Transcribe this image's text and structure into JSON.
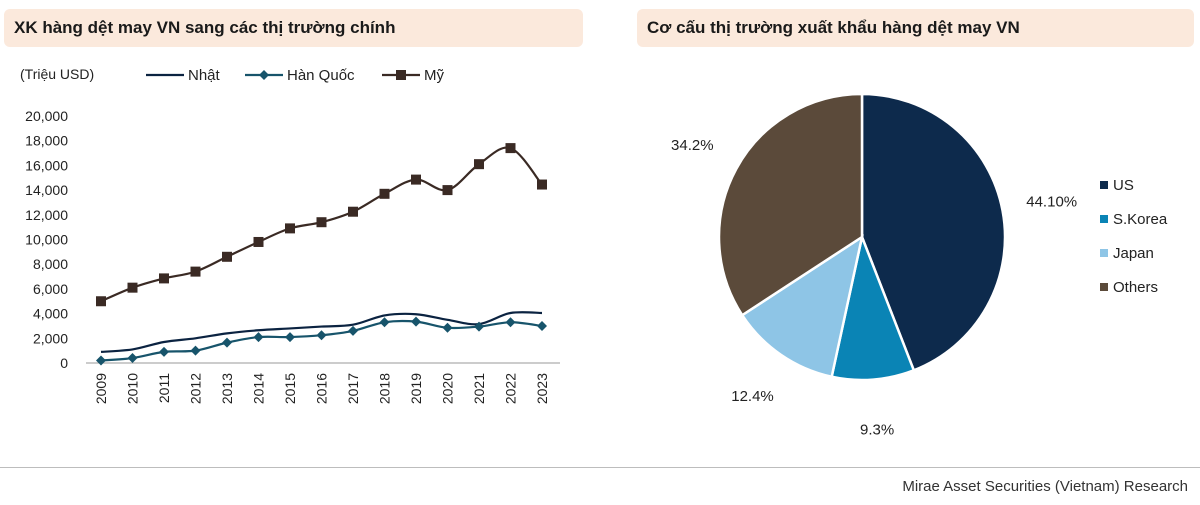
{
  "left_title": "XK hàng dệt may VN sang các thị trường chính",
  "right_title": "Cơ cấu thị trường xuất khẩu hàng dệt may VN",
  "source": "Mirae Asset Securities (Vietnam) Research",
  "chart_data": [
    {
      "type": "line",
      "unit_label": "(Triệu USD)",
      "x": [
        "2009",
        "2010",
        "2011",
        "2012",
        "2013",
        "2014",
        "2015",
        "2016",
        "2017",
        "2018",
        "2019",
        "2020",
        "2021",
        "2022",
        "2023"
      ],
      "ylim": [
        0,
        20000
      ],
      "yticks": [
        "0",
        "2,000",
        "4,000",
        "6,000",
        "8,000",
        "10,000",
        "12,000",
        "14,000",
        "16,000",
        "18,000",
        "20,000"
      ],
      "legend_position": "top",
      "series": [
        {
          "name": "Nhật",
          "color": "#0b2341",
          "marker": "none",
          "values": [
            900,
            1100,
            1700,
            2000,
            2400,
            2650,
            2800,
            2950,
            3100,
            3850,
            3950,
            3500,
            3150,
            4050,
            4050
          ]
        },
        {
          "name": "Hàn Quốc",
          "color": "#17546b",
          "marker": "diamond",
          "values": [
            200,
            400,
            900,
            1000,
            1650,
            2100,
            2100,
            2250,
            2600,
            3300,
            3350,
            2850,
            2950,
            3300,
            3000
          ]
        },
        {
          "name": "Mỹ",
          "color": "#3a2a24",
          "marker": "square",
          "values": [
            5000,
            6100,
            6850,
            7400,
            8600,
            9800,
            10900,
            11400,
            12250,
            13700,
            14850,
            14000,
            16100,
            17400,
            14450
          ]
        }
      ]
    },
    {
      "type": "pie",
      "legend_position": "right",
      "slices": [
        {
          "name": "US",
          "value": 44.1,
          "label": "44.10%",
          "color": "#0d2a4c"
        },
        {
          "name": "S.Korea",
          "value": 9.3,
          "label": "9.3%",
          "color": "#0a84b5"
        },
        {
          "name": "Japan",
          "value": 12.4,
          "label": "12.4%",
          "color": "#8ec5e6"
        },
        {
          "name": "Others",
          "value": 34.2,
          "label": "34.2%",
          "color": "#5b4a3a"
        }
      ]
    }
  ]
}
